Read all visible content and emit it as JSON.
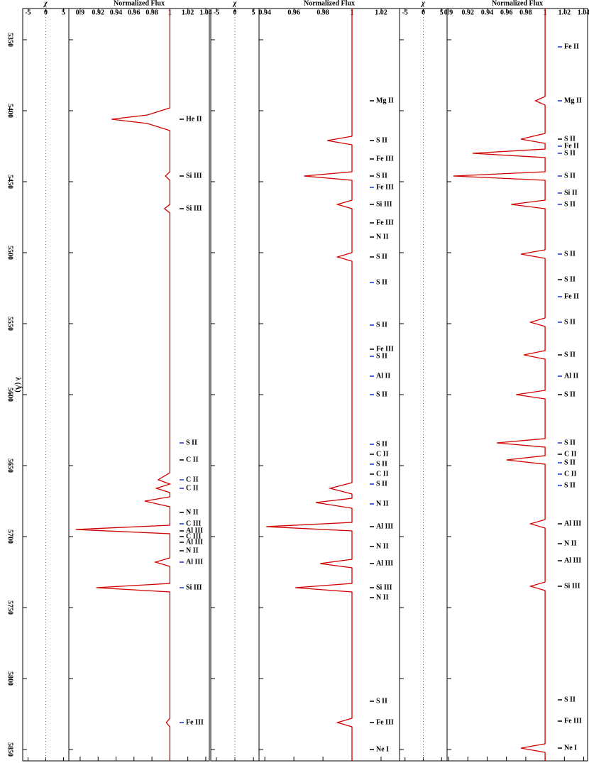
{
  "chart_data": [
    {
      "type": "line",
      "title": "Normalized Flux",
      "chi_label": "χ",
      "ylabel": "λ (Å)",
      "ylim": [
        5328,
        5858
      ],
      "yticks": [
        5350,
        5400,
        5450,
        5500,
        5550,
        5600,
        5650,
        5700,
        5750,
        5800,
        5850
      ],
      "xlim": [
        0.8874,
        1.044
      ],
      "xticks": [
        0.9,
        0.92,
        0.94,
        0.96,
        0.98,
        1,
        1.02,
        1.04
      ],
      "chi_lim": [
        -6.5,
        6.5
      ],
      "chi_ticks": [
        -5,
        0,
        5
      ],
      "series": [
        {
          "color": "#d00000",
          "x": [
            5328,
            5398,
            5403,
            5406,
            5409,
            5414,
            5443,
            5446,
            5449,
            5466,
            5469,
            5472,
            5655,
            5660,
            5663,
            5666,
            5669,
            5672,
            5675,
            5679,
            5692,
            5695,
            5698,
            5715,
            5718,
            5721,
            5733,
            5736,
            5739,
            5828,
            5831,
            5834,
            5858
          ],
          "values": [
            1,
            1,
            0.975,
            0.935,
            0.975,
            1,
            1,
            0.995,
            1,
            1,
            0.994,
            1,
            1,
            0.987,
            1,
            0.985,
            1,
            1,
            0.972,
            1,
            1,
            0.895,
            1,
            1,
            0.984,
            1,
            1,
            0.918,
            1,
            1,
            0.996,
            1,
            1
          ]
        }
      ],
      "annotations": [
        {
          "text": "He II",
          "at": 5406,
          "color": "#000000"
        },
        {
          "text": "Si III",
          "at": 5446,
          "color": "#000000"
        },
        {
          "text": "Si III",
          "at": 5469,
          "color": "#000000"
        },
        {
          "text": "S II",
          "at": 5634,
          "color": "#1030d0"
        },
        {
          "text": "C II",
          "at": 5646,
          "color": "#000000"
        },
        {
          "text": "C II",
          "at": 5660,
          "color": "#1030d0"
        },
        {
          "text": "C II",
          "at": 5666,
          "color": "#1030d0"
        },
        {
          "text": "N II",
          "at": 5683,
          "color": "#000000"
        },
        {
          "text": "C III",
          "at": 5691,
          "color": "#1030d0"
        },
        {
          "text": "Al III",
          "at": 5696,
          "color": "#000000"
        },
        {
          "text": "C III",
          "at": 5700,
          "color": "#000000"
        },
        {
          "text": "Al III",
          "at": 5704,
          "color": "#000000"
        },
        {
          "text": "N II",
          "at": 5710,
          "color": "#000000"
        },
        {
          "text": "Al III",
          "at": 5718,
          "color": "#1030d0"
        },
        {
          "text": "Si III",
          "at": 5736,
          "color": "#1030d0"
        },
        {
          "text": "Fe III",
          "at": 5831,
          "color": "#1030d0"
        }
      ]
    },
    {
      "type": "line",
      "title": "Normalized Flux",
      "chi_label": "χ",
      "ylim": [
        5328,
        5858
      ],
      "yticks": [
        5350,
        5400,
        5450,
        5500,
        5550,
        5600,
        5650,
        5700,
        5750,
        5800,
        5850
      ],
      "xlim": [
        0.936,
        1.0327
      ],
      "xticks": [
        0.94,
        0.96,
        0.98,
        1,
        1.02
      ],
      "chi_lim": [
        -6.5,
        6.5
      ],
      "chi_ticks": [
        -5,
        0,
        5
      ],
      "series": [
        {
          "color": "#d00000",
          "x": [
            5328,
            5418,
            5421,
            5424,
            5443,
            5446,
            5449,
            5463,
            5466,
            5469,
            5500,
            5503,
            5506,
            5662,
            5666,
            5670,
            5673,
            5676,
            5680,
            5690,
            5693,
            5696,
            5716,
            5719,
            5722,
            5733,
            5736,
            5739,
            5828,
            5831,
            5834,
            5858
          ],
          "values": [
            1,
            1,
            0.983,
            1,
            1,
            0.967,
            1,
            1,
            0.99,
            1,
            1,
            0.99,
            1,
            1,
            0.985,
            1,
            1,
            0.975,
            1,
            1,
            0.941,
            1,
            1,
            0.978,
            1,
            1,
            0.961,
            1,
            1,
            0.99,
            1,
            1
          ]
        }
      ],
      "annotations": [
        {
          "text": "Mg II",
          "at": 5393,
          "color": "#000000"
        },
        {
          "text": "S II",
          "at": 5421,
          "color": "#000000"
        },
        {
          "text": "Fe III",
          "at": 5434,
          "color": "#000000"
        },
        {
          "text": "S II",
          "at": 5446,
          "color": "#000000"
        },
        {
          "text": "Fe III",
          "at": 5454,
          "color": "#1030d0"
        },
        {
          "text": "Si III",
          "at": 5466,
          "color": "#000000"
        },
        {
          "text": "Fe III",
          "at": 5479,
          "color": "#000000"
        },
        {
          "text": "N II",
          "at": 5489,
          "color": "#000000"
        },
        {
          "text": "S II",
          "at": 5503,
          "color": "#000000"
        },
        {
          "text": "S II",
          "at": 5521,
          "color": "#1030d0"
        },
        {
          "text": "S II",
          "at": 5551,
          "color": "#1030d0"
        },
        {
          "text": "Fe III",
          "at": 5568,
          "color": "#000000"
        },
        {
          "text": "S II",
          "at": 5573,
          "color": "#1030d0"
        },
        {
          "text": "Al II",
          "at": 5587,
          "color": "#1030d0"
        },
        {
          "text": "S II",
          "at": 5600,
          "color": "#1030d0"
        },
        {
          "text": "S II",
          "at": 5635,
          "color": "#1030d0"
        },
        {
          "text": "C II",
          "at": 5642,
          "color": "#000000"
        },
        {
          "text": "S II",
          "at": 5649,
          "color": "#1030d0"
        },
        {
          "text": "C II",
          "at": 5656,
          "color": "#000000"
        },
        {
          "text": "S II",
          "at": 5663,
          "color": "#1030d0"
        },
        {
          "text": "N II",
          "at": 5677,
          "color": "#1030d0"
        },
        {
          "text": "Al III",
          "at": 5693,
          "color": "#000000"
        },
        {
          "text": "N II",
          "at": 5707,
          "color": "#000000"
        },
        {
          "text": "Al III",
          "at": 5719,
          "color": "#000000"
        },
        {
          "text": "Si III",
          "at": 5736,
          "color": "#000000"
        },
        {
          "text": "N II",
          "at": 5743,
          "color": "#000000"
        },
        {
          "text": "S II",
          "at": 5816,
          "color": "#000000"
        },
        {
          "text": "Fe III",
          "at": 5831,
          "color": "#000000"
        },
        {
          "text": "Ne I",
          "at": 5850,
          "color": "#000000"
        }
      ]
    },
    {
      "type": "line",
      "title": "Normalized Flux",
      "chi_label": "χ",
      "ylim": [
        5328,
        5858
      ],
      "yticks": [
        5350,
        5400,
        5450,
        5500,
        5550,
        5600,
        5650,
        5700,
        5750,
        5800,
        5850
      ],
      "xlim": [
        0.8985,
        1.044
      ],
      "xticks": [
        0.9,
        0.92,
        0.94,
        0.96,
        0.98,
        1,
        1.02,
        1.04
      ],
      "chi_lim": [
        -6.5,
        6.5
      ],
      "chi_ticks": [
        -5,
        0,
        5
      ],
      "series": [
        {
          "color": "#d00000",
          "x": [
            5328,
            5390,
            5393,
            5396,
            5416,
            5420,
            5423,
            5427,
            5430,
            5433,
            5443,
            5446,
            5449,
            5463,
            5466,
            5469,
            5498,
            5501,
            5504,
            5546,
            5549,
            5552,
            5569,
            5572,
            5575,
            5597,
            5600,
            5603,
            5631,
            5634,
            5637,
            5643,
            5646,
            5649,
            5688,
            5691,
            5694,
            5732,
            5735,
            5738,
            5846,
            5849,
            5852,
            5858
          ],
          "values": [
            1,
            1,
            0.99,
            1,
            1,
            0.975,
            1,
            1,
            0.925,
            1,
            1,
            0.905,
            1,
            1,
            0.965,
            1,
            1,
            0.975,
            1,
            1,
            0.985,
            1,
            1,
            0.978,
            1,
            1,
            0.97,
            1,
            1,
            0.95,
            1,
            1,
            0.96,
            1,
            1,
            0.985,
            1,
            1,
            0.985,
            1,
            1,
            0.975,
            1,
            1
          ]
        }
      ],
      "annotations": [
        {
          "text": "Fe II",
          "at": 5355,
          "color": "#1030d0"
        },
        {
          "text": "Mg II",
          "at": 5393,
          "color": "#1030d0"
        },
        {
          "text": "S II",
          "at": 5420,
          "color": "#000000"
        },
        {
          "text": "Fe II",
          "at": 5425,
          "color": "#1030d0"
        },
        {
          "text": "S II",
          "at": 5430,
          "color": "#1030d0"
        },
        {
          "text": "S II",
          "at": 5446,
          "color": "#1030d0"
        },
        {
          "text": "Si II",
          "at": 5458,
          "color": "#1030d0"
        },
        {
          "text": "S II",
          "at": 5466,
          "color": "#1030d0"
        },
        {
          "text": "S II",
          "at": 5501,
          "color": "#1030d0"
        },
        {
          "text": "S II",
          "at": 5519,
          "color": "#000000"
        },
        {
          "text": "Fe II",
          "at": 5531,
          "color": "#1030d0"
        },
        {
          "text": "S II",
          "at": 5549,
          "color": "#1030d0"
        },
        {
          "text": "S II",
          "at": 5572,
          "color": "#000000"
        },
        {
          "text": "Al II",
          "at": 5587,
          "color": "#1030d0"
        },
        {
          "text": "S II",
          "at": 5600,
          "color": "#000000"
        },
        {
          "text": "S II",
          "at": 5634,
          "color": "#1030d0"
        },
        {
          "text": "C II",
          "at": 5642,
          "color": "#000000"
        },
        {
          "text": "S II",
          "at": 5648,
          "color": "#1030d0"
        },
        {
          "text": "C II",
          "at": 5656,
          "color": "#1030d0"
        },
        {
          "text": "S II",
          "at": 5664,
          "color": "#1030d0"
        },
        {
          "text": "Al III",
          "at": 5691,
          "color": "#000000"
        },
        {
          "text": "N II",
          "at": 5705,
          "color": "#000000"
        },
        {
          "text": "Al III",
          "at": 5717,
          "color": "#000000"
        },
        {
          "text": "Si III",
          "at": 5735,
          "color": "#000000"
        },
        {
          "text": "S II",
          "at": 5815,
          "color": "#000000"
        },
        {
          "text": "Fe III",
          "at": 5830,
          "color": "#000000"
        },
        {
          "text": "Ne I",
          "at": 5849,
          "color": "#000000"
        }
      ]
    }
  ]
}
